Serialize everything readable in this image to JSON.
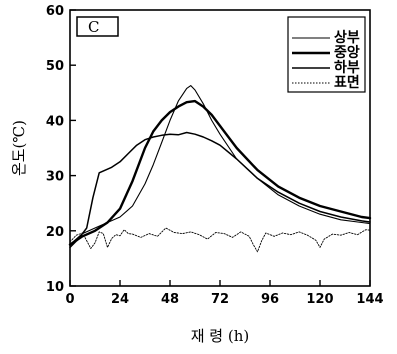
{
  "chart_data": {
    "type": "line",
    "panel_label": "C",
    "xlabel": "재 령 (h)",
    "ylabel": "온도(℃)",
    "xlim": [
      0,
      144
    ],
    "ylim": [
      10,
      60
    ],
    "x_ticks": [
      0,
      24,
      48,
      72,
      96,
      120,
      144
    ],
    "y_ticks": [
      10,
      20,
      30,
      40,
      50,
      60
    ],
    "legend_position": "top-right",
    "grid": false,
    "series": [
      {
        "name": "상부",
        "stroke": "#000000",
        "width": 1.1,
        "x": [
          0,
          6,
          12,
          18,
          24,
          30,
          36,
          40,
          44,
          48,
          52,
          56,
          58,
          60,
          64,
          68,
          72,
          80,
          90,
          100,
          110,
          120,
          130,
          140,
          144
        ],
        "y": [
          17.5,
          19.5,
          20.5,
          21.5,
          22.5,
          24.5,
          28.5,
          32,
          36,
          40,
          43.5,
          45.8,
          46.3,
          45.5,
          43,
          40,
          37.5,
          33,
          29.5,
          26.5,
          24.5,
          23,
          22,
          21.5,
          21.3
        ]
      },
      {
        "name": "중앙",
        "stroke": "#000000",
        "width": 2.4,
        "x": [
          0,
          6,
          12,
          18,
          24,
          30,
          36,
          40,
          44,
          48,
          52,
          56,
          60,
          64,
          68,
          72,
          80,
          90,
          100,
          110,
          120,
          130,
          140,
          144
        ],
        "y": [
          17.5,
          19,
          20,
          21.5,
          24,
          29,
          35,
          38,
          40,
          41.5,
          42.5,
          43.3,
          43.5,
          42.5,
          41,
          39,
          35,
          31,
          28,
          26,
          24.5,
          23.5,
          22.5,
          22.3
        ]
      },
      {
        "name": "하부",
        "stroke": "#000000",
        "width": 1.5,
        "x": [
          0,
          4,
          8,
          11,
          14,
          20,
          24,
          28,
          32,
          36,
          40,
          44,
          48,
          52,
          56,
          60,
          64,
          68,
          72,
          80,
          90,
          100,
          110,
          120,
          130,
          140,
          144
        ],
        "y": [
          17,
          18.5,
          20.5,
          26,
          30.5,
          31.5,
          32.5,
          34,
          35.5,
          36.5,
          37,
          37.3,
          37.5,
          37.4,
          37.8,
          37.5,
          37,
          36.3,
          35.5,
          33,
          29.5,
          27,
          25,
          23.5,
          22.5,
          21.8,
          21.6
        ]
      },
      {
        "name": "표면",
        "stroke": "#000000",
        "width": 0.9,
        "dash": "1.5 1.5",
        "x": [
          0,
          3,
          6,
          8,
          10,
          12,
          14,
          16,
          18,
          20,
          22,
          24,
          26,
          28,
          30,
          34,
          38,
          42,
          46,
          50,
          54,
          58,
          62,
          66,
          70,
          74,
          78,
          82,
          86,
          88,
          90,
          92,
          94,
          98,
          102,
          106,
          110,
          114,
          118,
          120,
          122,
          126,
          130,
          134,
          138,
          142,
          144
        ],
        "y": [
          18,
          19.2,
          19.6,
          18.2,
          16.8,
          17.8,
          19.8,
          19.5,
          17,
          18.6,
          19.3,
          19.1,
          20.2,
          19.5,
          19.4,
          18.8,
          19.5,
          19.0,
          20.5,
          19.7,
          19.5,
          19.8,
          19.3,
          18.5,
          19.7,
          19.5,
          18.8,
          19.8,
          19.0,
          17.5,
          16.2,
          18.2,
          19.6,
          19.0,
          19.6,
          19.3,
          19.8,
          19.2,
          18.3,
          17.0,
          18.5,
          19.4,
          19.2,
          19.7,
          19.3,
          20.2,
          20.1
        ]
      }
    ]
  }
}
